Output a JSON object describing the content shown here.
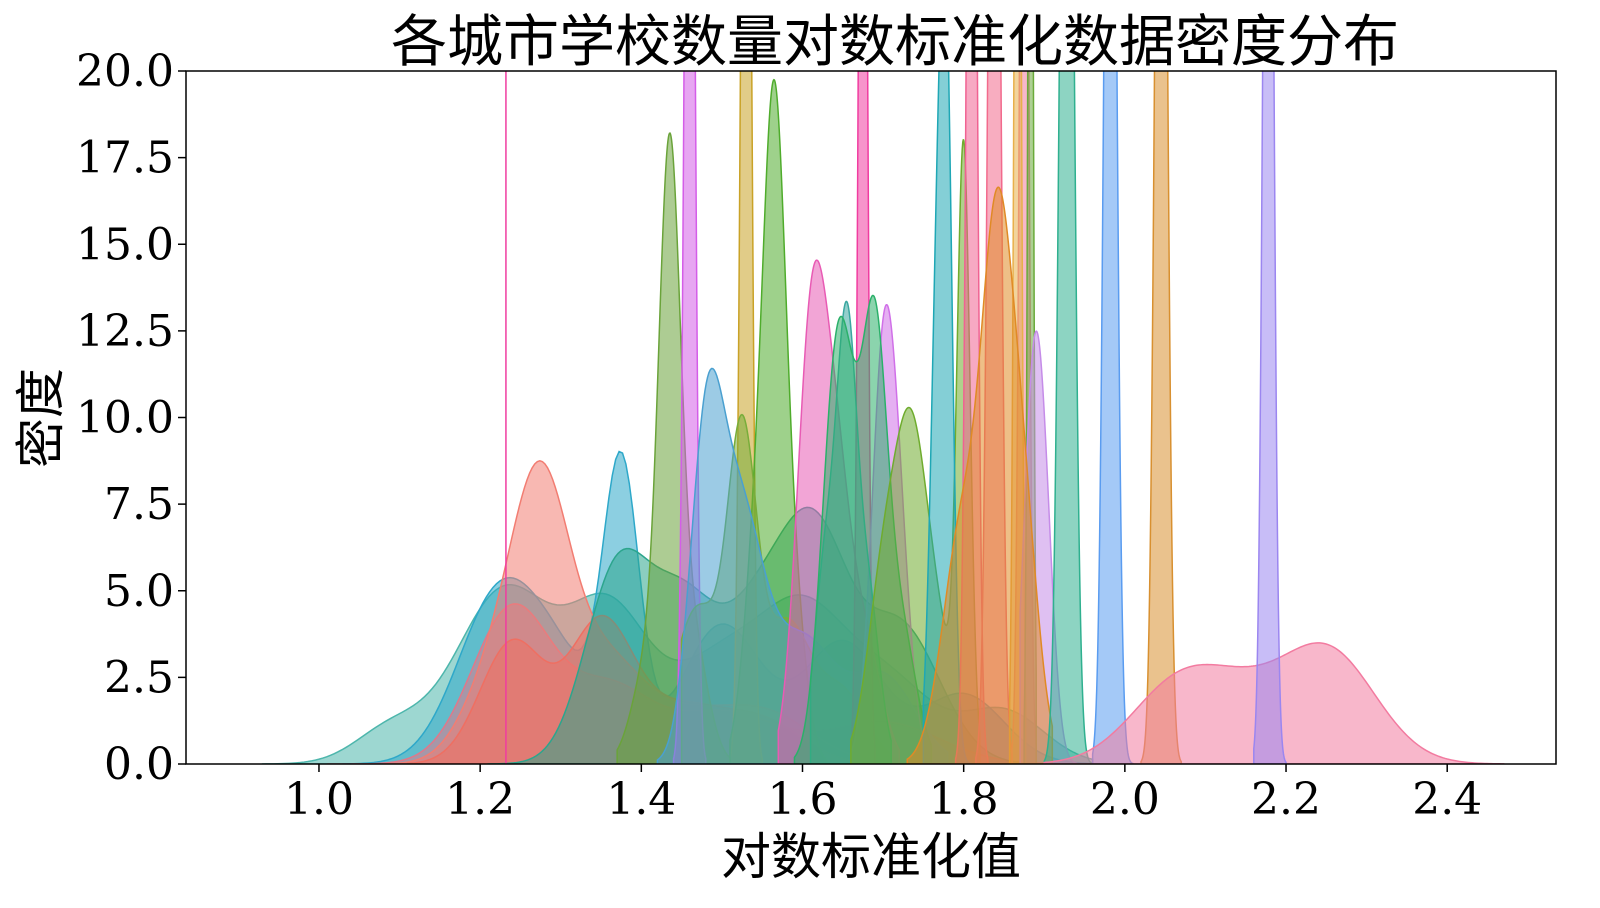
{
  "chart_data": {
    "type": "area",
    "title": "各城市学校数量对数标准化数据密度分布",
    "xlabel": "对数标准化值",
    "ylabel": "密度",
    "xlim": [
      0.835,
      2.535
    ],
    "ylim": [
      0,
      20
    ],
    "xticks": [
      "1.0",
      "1.2",
      "1.4",
      "1.6",
      "1.8",
      "2.0",
      "2.2",
      "2.4"
    ],
    "xtick_values": [
      1.0,
      1.2,
      1.4,
      1.6,
      1.8,
      2.0,
      2.2,
      2.4
    ],
    "yticks": [
      "0.0",
      "2.5",
      "5.0",
      "7.5",
      "10.0",
      "12.5",
      "15.0",
      "17.5",
      "20.0"
    ],
    "ytick_values": [
      0,
      2.5,
      5,
      7.5,
      10,
      12.5,
      15,
      17.5,
      20
    ],
    "grid": false,
    "legend": "none",
    "series": [
      {
        "color": "#4db6ac",
        "range": [
          0.93,
          1.96
        ],
        "peaks": [
          [
            1.09,
            1.0,
            0.045
          ],
          [
            1.23,
            5.0,
            0.06
          ],
          [
            1.36,
            4.2,
            0.05
          ],
          [
            1.5,
            3.0,
            0.06
          ],
          [
            1.6,
            3.5,
            0.05
          ],
          [
            1.7,
            2.5,
            0.06
          ],
          [
            1.85,
            1.5,
            0.05
          ]
        ]
      },
      {
        "color": "#2ea8c9",
        "range": [
          1.03,
          1.96
        ],
        "peaks": [
          [
            1.22,
            4.5,
            0.05
          ],
          [
            1.375,
            8.0,
            0.022
          ],
          [
            1.3,
            2.5,
            0.05
          ],
          [
            1.5,
            4.0,
            0.05
          ],
          [
            1.65,
            3.5,
            0.05
          ],
          [
            1.8,
            2.0,
            0.05
          ]
        ]
      },
      {
        "color": "#e0788a",
        "range": [
          1.01,
          1.92
        ],
        "peaks": [
          [
            1.24,
            4.5,
            0.05
          ],
          [
            1.36,
            2.0,
            0.05
          ],
          [
            1.5,
            1.5,
            0.07
          ],
          [
            1.7,
            1.2,
            0.07
          ]
        ]
      },
      {
        "color": "#f27d72",
        "range": [
          1.08,
          1.78
        ],
        "peaks": [
          [
            1.275,
            6.8,
            0.035
          ],
          [
            1.22,
            2.5,
            0.04
          ],
          [
            1.35,
            3.0,
            0.05
          ],
          [
            1.45,
            1.0,
            0.05
          ],
          [
            1.55,
            1.5,
            0.06
          ]
        ]
      },
      {
        "color": "#ef6f62",
        "range": [
          1.11,
          1.7
        ],
        "peaks": [
          [
            1.24,
            3.5,
            0.04
          ],
          [
            1.35,
            4.0,
            0.04
          ],
          [
            1.45,
            1.5,
            0.05
          ],
          [
            1.55,
            1.2,
            0.05
          ]
        ]
      },
      {
        "color": "#2ca58d",
        "range": [
          1.21,
          1.98
        ],
        "peaks": [
          [
            1.37,
            5.5,
            0.04
          ],
          [
            1.45,
            4.0,
            0.04
          ],
          [
            1.55,
            4.5,
            0.05
          ],
          [
            1.62,
            5.0,
            0.04
          ],
          [
            1.72,
            4.0,
            0.05
          ]
        ]
      },
      {
        "color": "#6aa33a",
        "range": [
          1.37,
          1.51
        ],
        "peaks": [
          [
            1.435,
            15.0,
            0.013
          ],
          [
            1.41,
            3.0,
            0.02
          ],
          [
            1.46,
            4.0,
            0.02
          ]
        ]
      },
      {
        "color": "#d45de8",
        "range": [
          1.44,
          1.48
        ],
        "peaks": [
          [
            1.46,
            40.0,
            0.006
          ]
        ]
      },
      {
        "color": "#c9a227",
        "range": [
          1.51,
          1.55
        ],
        "peaks": [
          [
            1.53,
            40.0,
            0.006
          ]
        ]
      },
      {
        "color": "#4fac2c",
        "range": [
          1.51,
          1.63
        ],
        "peaks": [
          [
            1.565,
            17.5,
            0.014
          ],
          [
            1.54,
            5.0,
            0.015
          ],
          [
            1.59,
            4.0,
            0.015
          ]
        ]
      },
      {
        "color": "#78ad3a",
        "range": [
          1.45,
          1.72
        ],
        "peaks": [
          [
            1.525,
            8.5,
            0.018
          ],
          [
            1.47,
            4.5,
            0.03
          ],
          [
            1.58,
            4.0,
            0.03
          ],
          [
            1.65,
            2.0,
            0.03
          ]
        ]
      },
      {
        "color": "#4aa0d0",
        "range": [
          1.42,
          1.78
        ],
        "peaks": [
          [
            1.48,
            8.0,
            0.02
          ],
          [
            1.52,
            7.0,
            0.03
          ],
          [
            1.6,
            3.5,
            0.04
          ],
          [
            1.7,
            2.5,
            0.04
          ]
        ]
      },
      {
        "color": "#e85bb4",
        "range": [
          1.57,
          1.72
        ],
        "peaks": [
          [
            1.61,
            11.2,
            0.018
          ],
          [
            1.64,
            8.0,
            0.02
          ],
          [
            1.68,
            3.0,
            0.02
          ]
        ]
      },
      {
        "color": "#f03ca0",
        "range": [
          1.66,
          1.69
        ],
        "peaks": [
          [
            1.675,
            40.0,
            0.005
          ]
        ]
      },
      {
        "color": "#d070e8",
        "range": [
          1.66,
          1.75
        ],
        "peaks": [
          [
            1.7,
            10.8,
            0.015
          ],
          [
            1.72,
            5.0,
            0.015
          ]
        ]
      },
      {
        "color": "#3aa7a0",
        "range": [
          1.61,
          1.71
        ],
        "peaks": [
          [
            1.655,
            10.6,
            0.012
          ],
          [
            1.63,
            6.0,
            0.015
          ],
          [
            1.68,
            5.0,
            0.015
          ]
        ]
      },
      {
        "color": "#2bb06a",
        "range": [
          1.59,
          1.76
        ],
        "peaks": [
          [
            1.64,
            8.5,
            0.018
          ],
          [
            1.69,
            10.0,
            0.015
          ],
          [
            1.66,
            6.0,
            0.02
          ],
          [
            1.72,
            4.0,
            0.02
          ]
        ]
      },
      {
        "color": "#6fac2e",
        "range": [
          1.66,
          1.82
        ],
        "peaks": [
          [
            1.735,
            8.5,
            0.02
          ],
          [
            1.7,
            5.0,
            0.02
          ],
          [
            1.77,
            3.0,
            0.02
          ],
          [
            1.8,
            17.0,
            0.008
          ]
        ]
      },
      {
        "color": "#1fa7b5",
        "range": [
          1.75,
          1.81
        ],
        "peaks": [
          [
            1.778,
            20.5,
            0.008
          ],
          [
            1.765,
            10.0,
            0.008
          ]
        ]
      },
      {
        "color": "#f06292",
        "range": [
          1.79,
          1.83
        ],
        "peaks": [
          [
            1.81,
            40.0,
            0.006
          ]
        ]
      },
      {
        "color": "#f26a8c",
        "range": [
          1.815,
          1.86
        ],
        "peaks": [
          [
            1.838,
            40.0,
            0.007
          ]
        ]
      },
      {
        "color": "#f07ba0",
        "range": [
          1.86,
          1.89
        ],
        "peaks": [
          [
            1.875,
            40.0,
            0.005
          ]
        ]
      },
      {
        "color": "#e8b04a",
        "range": [
          1.857,
          1.877
        ],
        "peaks": [
          [
            1.867,
            40.0,
            0.004
          ]
        ]
      },
      {
        "color": "#6aaa3a",
        "range": [
          1.875,
          1.89
        ],
        "peaks": [
          [
            1.883,
            40.0,
            0.003
          ]
        ]
      },
      {
        "color": "#c58ce8",
        "range": [
          1.87,
          1.94
        ],
        "peaks": [
          [
            1.885,
            9.0,
            0.012
          ],
          [
            1.9,
            6.0,
            0.012
          ]
        ]
      },
      {
        "color": "#e08a25",
        "range": [
          1.73,
          1.91
        ],
        "peaks": [
          [
            1.84,
            12.0,
            0.018
          ],
          [
            1.8,
            7.0,
            0.025
          ],
          [
            1.87,
            8.0,
            0.02
          ]
        ]
      },
      {
        "color": "#2fb08f",
        "range": [
          1.9,
          1.96
        ],
        "peaks": [
          [
            1.928,
            40.0,
            0.008
          ]
        ]
      },
      {
        "color": "#5a9cf0",
        "range": [
          1.96,
          2.01
        ],
        "peaks": [
          [
            1.982,
            40.0,
            0.007
          ]
        ]
      },
      {
        "color": "#d89030",
        "range": [
          2.02,
          2.07
        ],
        "peaks": [
          [
            2.045,
            40.0,
            0.007
          ]
        ]
      },
      {
        "color": "#f27ba0",
        "range": [
          1.9,
          2.47
        ],
        "peaks": [
          [
            2.07,
            2.4,
            0.06
          ],
          [
            2.25,
            3.3,
            0.06
          ],
          [
            2.15,
            1.0,
            0.05
          ]
        ]
      },
      {
        "color": "#9b86f0",
        "range": [
          2.16,
          2.2
        ],
        "peaks": [
          [
            2.178,
            40.0,
            0.006
          ]
        ]
      }
    ],
    "vlines": [
      {
        "x": 1.232,
        "color": "#f03ca0"
      }
    ]
  }
}
